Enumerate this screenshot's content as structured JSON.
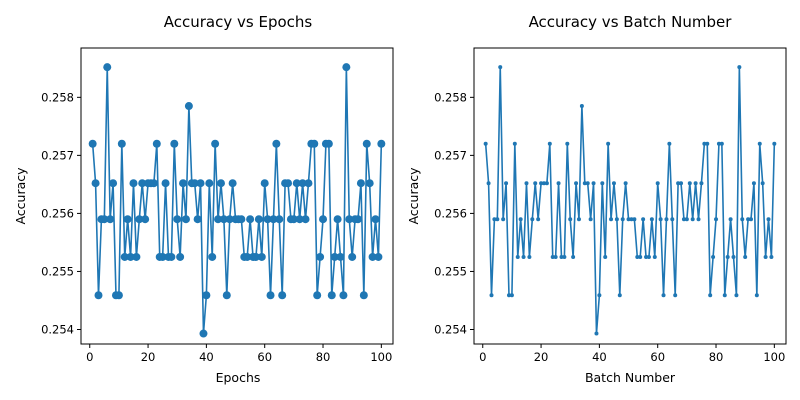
{
  "figure": {
    "background": "#ffffff",
    "line_color": "#1f77b4"
  },
  "chart_data": [
    {
      "type": "line",
      "title": "Accuracy vs Epochs",
      "xlabel": "Epochs",
      "ylabel": "Accuracy",
      "xlim": [
        -3,
        104
      ],
      "ylim": [
        0.25375,
        0.25885
      ],
      "xticks": [
        0,
        20,
        40,
        60,
        80,
        100
      ],
      "yticks": [
        0.254,
        0.255,
        0.256,
        0.257,
        0.258
      ],
      "ytick_labels": [
        "0.254",
        "0.255",
        "0.256",
        "0.257",
        "0.258"
      ],
      "marker": "large-circle",
      "grid": false,
      "series": [
        {
          "x": [
            1,
            2,
            3,
            4,
            5,
            6,
            7,
            8,
            9,
            10,
            11,
            12,
            13,
            14,
            15,
            16,
            17,
            18,
            19,
            20,
            21,
            22,
            23,
            24,
            25,
            26,
            27,
            28,
            29,
            30,
            31,
            32,
            33,
            34,
            35,
            36,
            37,
            38,
            39,
            40,
            41,
            42,
            43,
            44,
            45,
            46,
            47,
            48,
            49,
            50,
            51,
            52,
            53,
            54,
            55,
            56,
            57,
            58,
            59,
            60,
            61,
            62,
            63,
            64,
            65,
            66,
            67,
            68,
            69,
            70,
            71,
            72,
            73,
            74,
            75,
            76,
            77,
            78,
            79,
            80,
            81,
            82,
            83,
            84,
            85,
            86,
            87,
            88,
            89,
            90,
            91,
            92,
            93,
            94,
            95,
            96,
            97,
            98,
            99,
            100
          ],
          "values": [
            0.2572,
            0.25652,
            0.25459,
            0.2559,
            0.2559,
            0.25852,
            0.2559,
            0.25652,
            0.25459,
            0.25459,
            0.2572,
            0.25525,
            0.2559,
            0.25525,
            0.25652,
            0.25525,
            0.2559,
            0.25652,
            0.2559,
            0.25652,
            0.25652,
            0.25652,
            0.2572,
            0.25525,
            0.25525,
            0.25652,
            0.25525,
            0.25525,
            0.2572,
            0.2559,
            0.25525,
            0.25652,
            0.2559,
            0.25785,
            0.25652,
            0.25652,
            0.2559,
            0.25652,
            0.25393,
            0.25459,
            0.25652,
            0.25525,
            0.2572,
            0.2559,
            0.25652,
            0.2559,
            0.25459,
            0.2559,
            0.25652,
            0.2559,
            0.2559,
            0.2559,
            0.25525,
            0.25525,
            0.2559,
            0.25525,
            0.25525,
            0.2559,
            0.25525,
            0.25652,
            0.2559,
            0.25459,
            0.2559,
            0.2572,
            0.2559,
            0.25459,
            0.25652,
            0.25652,
            0.2559,
            0.2559,
            0.25652,
            0.2559,
            0.25652,
            0.2559,
            0.25652,
            0.2572,
            0.2572,
            0.25459,
            0.25525,
            0.2559,
            0.2572,
            0.2572,
            0.25459,
            0.25525,
            0.2559,
            0.25525,
            0.25459,
            0.25852,
            0.2559,
            0.25525,
            0.2559,
            0.2559,
            0.25652,
            0.25459,
            0.2572,
            0.25652,
            0.25525,
            0.2559,
            0.25525,
            0.2572
          ]
        }
      ]
    },
    {
      "type": "line",
      "title": "Accuracy vs Batch Number",
      "xlabel": "Batch Number",
      "ylabel": "Accuracy",
      "xlim": [
        -3,
        104
      ],
      "ylim": [
        0.25375,
        0.25885
      ],
      "xticks": [
        0,
        20,
        40,
        60,
        80,
        100
      ],
      "yticks": [
        0.254,
        0.255,
        0.256,
        0.257,
        0.258
      ],
      "ytick_labels": [
        "0.254",
        "0.255",
        "0.256",
        "0.257",
        "0.258"
      ],
      "marker": "small-dot",
      "grid": false,
      "series": [
        {
          "x": [
            1,
            2,
            3,
            4,
            5,
            6,
            7,
            8,
            9,
            10,
            11,
            12,
            13,
            14,
            15,
            16,
            17,
            18,
            19,
            20,
            21,
            22,
            23,
            24,
            25,
            26,
            27,
            28,
            29,
            30,
            31,
            32,
            33,
            34,
            35,
            36,
            37,
            38,
            39,
            40,
            41,
            42,
            43,
            44,
            45,
            46,
            47,
            48,
            49,
            50,
            51,
            52,
            53,
            54,
            55,
            56,
            57,
            58,
            59,
            60,
            61,
            62,
            63,
            64,
            65,
            66,
            67,
            68,
            69,
            70,
            71,
            72,
            73,
            74,
            75,
            76,
            77,
            78,
            79,
            80,
            81,
            82,
            83,
            84,
            85,
            86,
            87,
            88,
            89,
            90,
            91,
            92,
            93,
            94,
            95,
            96,
            97,
            98,
            99,
            100
          ],
          "values": [
            0.2572,
            0.25652,
            0.25459,
            0.2559,
            0.2559,
            0.25852,
            0.2559,
            0.25652,
            0.25459,
            0.25459,
            0.2572,
            0.25525,
            0.2559,
            0.25525,
            0.25652,
            0.25525,
            0.2559,
            0.25652,
            0.2559,
            0.25652,
            0.25652,
            0.25652,
            0.2572,
            0.25525,
            0.25525,
            0.25652,
            0.25525,
            0.25525,
            0.2572,
            0.2559,
            0.25525,
            0.25652,
            0.2559,
            0.25785,
            0.25652,
            0.25652,
            0.2559,
            0.25652,
            0.25393,
            0.25459,
            0.25652,
            0.25525,
            0.2572,
            0.2559,
            0.25652,
            0.2559,
            0.25459,
            0.2559,
            0.25652,
            0.2559,
            0.2559,
            0.2559,
            0.25525,
            0.25525,
            0.2559,
            0.25525,
            0.25525,
            0.2559,
            0.25525,
            0.25652,
            0.2559,
            0.25459,
            0.2559,
            0.2572,
            0.2559,
            0.25459,
            0.25652,
            0.25652,
            0.2559,
            0.2559,
            0.25652,
            0.2559,
            0.25652,
            0.2559,
            0.25652,
            0.2572,
            0.2572,
            0.25459,
            0.25525,
            0.2559,
            0.2572,
            0.2572,
            0.25459,
            0.25525,
            0.2559,
            0.25525,
            0.25459,
            0.25852,
            0.2559,
            0.25525,
            0.2559,
            0.2559,
            0.25652,
            0.25459,
            0.2572,
            0.25652,
            0.25525,
            0.2559,
            0.25525,
            0.2572
          ]
        }
      ]
    }
  ]
}
